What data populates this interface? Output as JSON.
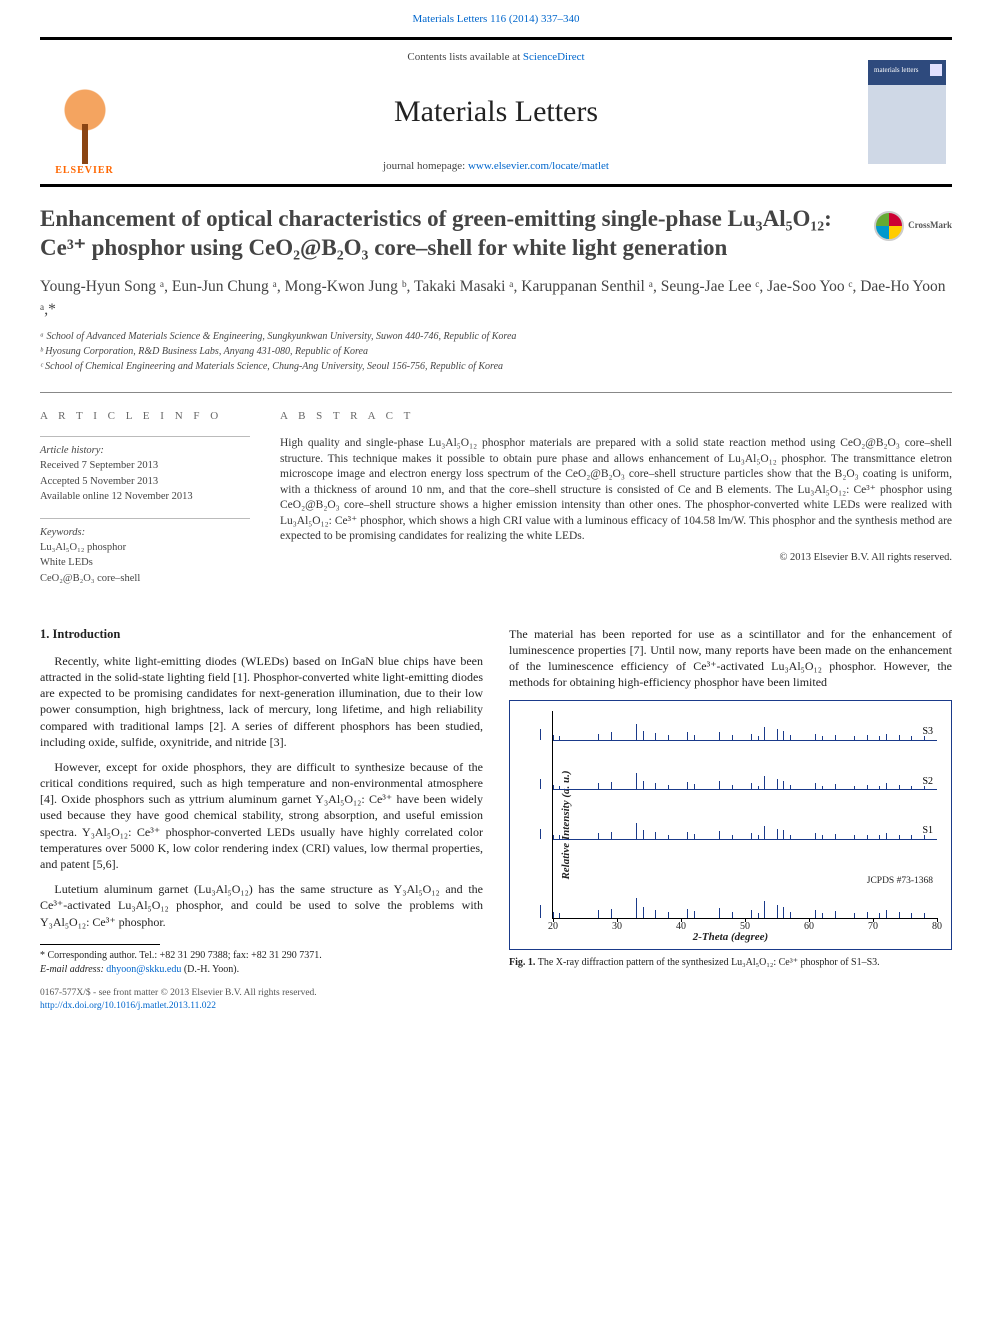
{
  "top_link": "Materials Letters 116 (2014) 337–340",
  "header": {
    "contents": "Contents lists available at ",
    "contents_link": "ScienceDirect",
    "journal": "Materials Letters",
    "homepage_prefix": "journal homepage: ",
    "homepage_url": "www.elsevier.com/locate/matlet",
    "elsevier": "ELSEVIER",
    "cover_label": "materials letters"
  },
  "crossmark": "CrossMark",
  "title": "Enhancement of optical characteristics of green-emitting single-phase Lu₃Al₅O₁₂: Ce³⁺ phosphor using CeO₂@B₂O₃ core–shell for white light generation",
  "authors": "Young-Hyun Song ᵃ, Eun-Jun Chung ᵃ, Mong-Kwon Jung ᵇ, Takaki Masaki ᵃ, Karuppanan Senthil ᵃ, Seung-Jae Lee ᶜ, Jae-Soo Yoo ᶜ, Dae-Ho Yoon ᵃ,*",
  "affiliations": {
    "a": "ᵃ School of Advanced Materials Science & Engineering, Sungkyunkwan University, Suwon 440-746, Republic of Korea",
    "b": "ᵇ Hyosung Corporation, R&D Business Labs, Anyang 431-080, Republic of Korea",
    "c": "ᶜ School of Chemical Engineering and Materials Science, Chung-Ang University, Seoul 156-756, Republic of Korea"
  },
  "meta": {
    "info_heading": "A R T I C L E   I N F O",
    "history_label": "Article history:",
    "received": "Received 7 September 2013",
    "accepted": "Accepted 5 November 2013",
    "online": "Available online 12 November 2013",
    "keywords_label": "Keywords:",
    "kw1": "Lu₃Al₅O₁₂ phosphor",
    "kw2": "White LEDs",
    "kw3": "CeO₂@B₂O₃ core–shell"
  },
  "abstract": {
    "heading": "A B S T R A C T",
    "text": "High quality and single-phase Lu₃Al₅O₁₂ phosphor materials are prepared with a solid state reaction method using CeO₂@B₂O₃ core–shell structure. This technique makes it possible to obtain pure phase and allows enhancement of Lu₃Al₅O₁₂ phosphor. The transmittance eletron microscope image and electron energy loss spectrum of the CeO₂@B₂O₃ core–shell structure particles show that the B₂O₃ coating is uniform, with a thickness of around 10 nm, and that the core–shell structure is consisted of Ce and B elements. The Lu₃Al₅O₁₂: Ce³⁺ phosphor using CeO₂@B₂O₃ core–shell structure shows a higher emission intensity than other ones. The phosphor-converted white LEDs were realized with Lu₃Al₅O₁₂: Ce³⁺ phosphor, which shows a high CRI value with a luminous efficacy of 104.58 lm/W. This phosphor and the synthesis method are expected to be promising candidates for realizing the white LEDs.",
    "copyright": "© 2013 Elsevier B.V. All rights reserved."
  },
  "body": {
    "section1_heading": "1. Introduction",
    "p1": "Recently, white light-emitting diodes (WLEDs) based on InGaN blue chips have been attracted in the solid-state lighting field [1]. Phosphor-converted white light-emitting diodes are expected to be promising candidates for next-generation illumination, due to their low power consumption, high brightness, lack of mercury, long lifetime, and high reliability compared with traditional lamps [2]. A series of different phosphors has been studied, including oxide, sulfide, oxynitride, and nitride [3].",
    "p2": "However, except for oxide phosphors, they are difficult to synthesize because of the critical conditions required, such as high temperature and non-environmental atmosphere [4]. Oxide phosphors such as yttrium aluminum garnet Y₃Al₅O₁₂: Ce³⁺ have been widely used because they have good chemical stability, strong absorption, and useful emission spectra. Y₃Al₅O₁₂: Ce³⁺ phosphor-converted LEDs usually have highly correlated color temperatures over 5000 K, low color rendering index (CRI) values, low thermal properties, and patent [5,6].",
    "p3": "Lutetium aluminum garnet (Lu₃Al₅O₁₂) has the same structure as Y₃Al₅O₁₂ and the Ce³⁺-activated Lu₃Al₅O₁₂ phosphor, and could be used to solve the problems with Y₃Al₅O₁₂: Ce³⁺ phosphor.",
    "p4": "The material has been reported for use as a scintillator and for the enhancement of luminescence properties [7]. Until now, many reports have been made on the enhancement of the luminescence efficiency of Ce³⁺-activated Lu₃Al₅O₁₂ phosphor. However, the methods for obtaining high-efficiency phosphor have been limited"
  },
  "figure1": {
    "type": "xrd-line",
    "x_label": "2-Theta (degree)",
    "y_label": "Relative Intensity (a. u.)",
    "x_ticks": [
      20,
      30,
      40,
      50,
      60,
      70,
      80
    ],
    "traces": [
      {
        "label": "S3",
        "y_offset_pct": 14
      },
      {
        "label": "S2",
        "y_offset_pct": 38
      },
      {
        "label": "S1",
        "y_offset_pct": 62
      }
    ],
    "reference_label": "JCPDS #73-1368",
    "peak_positions_2theta": [
      18,
      20,
      21,
      27,
      29,
      33,
      34,
      36,
      38,
      41,
      42,
      46,
      48,
      51,
      52,
      53,
      55,
      56,
      57,
      61,
      62,
      64,
      67,
      69,
      71,
      72,
      74,
      76,
      78
    ],
    "peak_heights": [
      14,
      6,
      5,
      8,
      10,
      22,
      12,
      9,
      6,
      10,
      7,
      11,
      6,
      8,
      5,
      18,
      14,
      12,
      6,
      8,
      5,
      7,
      5,
      6,
      5,
      8,
      6,
      5,
      5
    ],
    "colors": {
      "line": "#1a3a8a",
      "border": "#1a3a8a",
      "text": "#000000"
    },
    "caption": "Fig. 1. The X-ray diffraction pattern of the synthesized Lu₃Al₅O₁₂: Ce³⁺ phosphor of S1–S3."
  },
  "footnotes": {
    "corr": "* Corresponding author. Tel.: +82 31 290 7388; fax: +82 31 290 7371.",
    "email_label": "E-mail address: ",
    "email": "dhyoon@skku.edu",
    "email_suffix": " (D.-H. Yoon)."
  },
  "doi": {
    "line1": "0167-577X/$ - see front matter © 2013 Elsevier B.V. All rights reserved.",
    "line2": "http://dx.doi.org/10.1016/j.matlet.2013.11.022"
  }
}
